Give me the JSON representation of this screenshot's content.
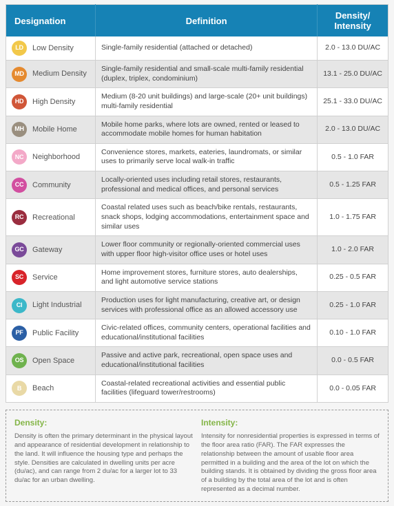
{
  "table": {
    "header": {
      "designation": "Designation",
      "definition": "Definition",
      "density": "Density/ Intensity"
    },
    "header_bg": "#1682b5",
    "rows": [
      {
        "code": "LD",
        "label": "Low Density",
        "def": "Single-family residential (attached or detached)",
        "val": "2.0 - 13.0 DU/AC",
        "color": "#f2c84a"
      },
      {
        "code": "MD",
        "label": "Medium Density",
        "def": "Single-family residential and small-scale multi-family residential (duplex, triplex, condominium)",
        "val": "13.1 - 25.0 DU/AC",
        "color": "#e58a2f"
      },
      {
        "code": "HD",
        "label": "High Density",
        "def": "Medium (8-20 unit buildings) and large-scale (20+ unit buildings) multi-family residential",
        "val": "25.1 - 33.0 DU/AC",
        "color": "#d05638"
      },
      {
        "code": "MH",
        "label": "Mobile Home",
        "def": "Mobile home parks, where lots are owned, rented or leased to accommodate mobile homes for human habitation",
        "val": "2.0 - 13.0 DU/AC",
        "color": "#9a8f7f"
      },
      {
        "code": "NC",
        "label": "Neighborhood",
        "def": "Convenience stores, markets, eateries, laundromats, or similar uses to primarily serve local walk-in traffic",
        "val": "0.5 - 1.0 FAR",
        "color": "#f3a9c8"
      },
      {
        "code": "CC",
        "label": "Community",
        "def": "Locally-oriented uses including retail stores, restaurants, professional and medical offices, and personal services",
        "val": "0.5 - 1.25 FAR",
        "color": "#d24fa0"
      },
      {
        "code": "RC",
        "label": "Recreational",
        "def": "Coastal related uses such as beach/bike rentals, restaurants, snack shops, lodging accommodations, entertainment space and similar uses",
        "val": "1.0 - 1.75 FAR",
        "color": "#9a2d3f"
      },
      {
        "code": "GC",
        "label": "Gateway",
        "def": "Lower floor community or regionally-oriented commercial uses with upper floor high-visitor office uses or hotel uses",
        "val": "1.0 - 2.0 FAR",
        "color": "#7a4a99"
      },
      {
        "code": "SC",
        "label": "Service",
        "def": "Home improvement stores, furniture stores, auto dealerships, and light automotive service stations",
        "val": "0.25 - 0.5 FAR",
        "color": "#d8242a"
      },
      {
        "code": "CI",
        "label": "Light Industrial",
        "def": "Production uses for light manufacturing, creative art, or design services with professional office as an allowed accessory use",
        "val": "0.25 - 1.0 FAR",
        "color": "#3cb8c9"
      },
      {
        "code": "PF",
        "label": "Public Facility",
        "def": "Civic-related offices, community centers, operational facilities and educational/institutional facilities",
        "val": "0.10 - 1.0 FAR",
        "color": "#2b5fa5"
      },
      {
        "code": "OS",
        "label": "Open Space",
        "def": "Passive and active park, recreational, open space uses and educational/institutional facilities",
        "val": "0.0 - 0.5 FAR",
        "color": "#6fb24e"
      },
      {
        "code": "B",
        "label": "Beach",
        "def": "Coastal-related recreational activities and essential public facilities (lifeguard tower/restrooms)",
        "val": "0.0 - 0.05 FAR",
        "color": "#e9d9a6"
      }
    ]
  },
  "notes": {
    "density": {
      "title": "Density:",
      "body": "Density is often the primary determinant in the physical layout and appearance of residential development in relationship to the land. It will influence the housing type and perhaps the style. Densities are calculated in dwelling units per acre (du/ac), and can range from 2 du/ac for a larger lot to 33 du/ac for an urban dwelling."
    },
    "intensity": {
      "title": "Intensity:",
      "body": "Intensity for nonresidential properties is expressed in terms of the floor area ratio (FAR). The FAR expresses the relationship between the amount of usable floor area permitted in a building and the area of the lot on which the building stands. It is obtained by dividing the gross floor area of a building by the total area of the lot and is often represented as a decimal number."
    },
    "title_color": "#84b547"
  }
}
